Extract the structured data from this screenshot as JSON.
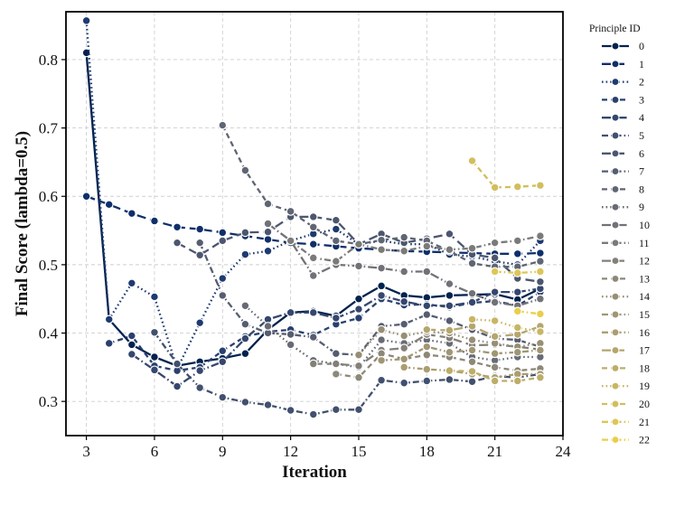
{
  "chart_data": {
    "type": "line",
    "title": "",
    "xlabel": "Iteration",
    "ylabel": "Final Score (lambda=0.5)",
    "xlim": [
      2.1,
      24
    ],
    "ylim": [
      0.25,
      0.87
    ],
    "xticks": [
      3,
      6,
      9,
      12,
      15,
      18,
      21,
      24
    ],
    "yticks": [
      0.3,
      0.4,
      0.5,
      0.6,
      0.7,
      0.8
    ],
    "xtick_labels": [
      "3",
      "6",
      "9",
      "12",
      "15",
      "18",
      "21",
      "24"
    ],
    "ytick_labels": [
      "0.3",
      "0.4",
      "0.5",
      "0.6",
      "0.7",
      "0.8"
    ],
    "grid": true,
    "legend_title": "Principle ID",
    "legend_position": "outside-right",
    "series": [
      {
        "name": "0",
        "color": "#00224e",
        "dash": "solid",
        "x": [
          3,
          4,
          5,
          6,
          7,
          8,
          9,
          10,
          11,
          12,
          13,
          14,
          15,
          16,
          17,
          18,
          19,
          20,
          21,
          22,
          23
        ],
        "y": [
          0.81,
          0.42,
          0.383,
          0.365,
          0.352,
          0.358,
          0.363,
          0.37,
          0.405,
          0.43,
          0.432,
          0.425,
          0.45,
          0.469,
          0.455,
          0.452,
          0.455,
          0.456,
          0.457,
          0.449,
          0.465
        ]
      },
      {
        "name": "1",
        "color": "#0e2f6a",
        "dash": "long",
        "x": [
          3,
          4,
          5,
          6,
          7,
          8,
          9,
          10,
          11,
          12,
          13,
          14,
          15,
          16,
          17,
          18,
          19,
          20,
          21,
          22,
          23
        ],
        "y": [
          0.6,
          0.588,
          0.575,
          0.564,
          0.555,
          0.552,
          0.547,
          0.542,
          0.537,
          0.532,
          0.53,
          0.527,
          0.524,
          0.522,
          0.52,
          0.519,
          0.518,
          0.517,
          0.516,
          0.516,
          0.517
        ]
      },
      {
        "name": "2",
        "color": "#1e3a70",
        "dash": "dot",
        "x": [
          3,
          4,
          5,
          6,
          7,
          8,
          9,
          10,
          11,
          12,
          13,
          14,
          15,
          16,
          17,
          18,
          19,
          20,
          21,
          22,
          23
        ],
        "y": [
          0.857,
          0.42,
          0.473,
          0.453,
          0.348,
          0.415,
          0.48,
          0.515,
          0.52,
          0.535,
          0.545,
          0.552,
          0.53,
          0.535,
          0.53,
          0.53,
          0.515,
          0.512,
          0.505,
          0.5,
          0.535
        ]
      },
      {
        "name": "3",
        "color": "#29406f",
        "dash": "dash",
        "x": [
          4,
          5,
          6,
          7,
          8,
          9,
          10,
          11,
          12,
          13,
          14,
          15,
          16,
          17,
          18,
          19,
          20,
          21,
          22,
          23
        ],
        "y": [
          0.385,
          0.396,
          0.352,
          0.345,
          0.35,
          0.374,
          0.395,
          0.402,
          0.405,
          0.397,
          0.413,
          0.422,
          0.45,
          0.441,
          0.442,
          0.438,
          0.444,
          0.447,
          0.44,
          0.46
        ]
      },
      {
        "name": "4",
        "color": "#35476e",
        "dash": "longdot",
        "x": [
          5,
          6,
          7,
          8,
          9,
          10,
          11,
          12,
          13,
          14,
          15,
          16,
          17,
          18,
          19,
          20,
          21,
          22,
          23
        ],
        "y": [
          0.369,
          0.346,
          0.322,
          0.345,
          0.358,
          0.392,
          0.42,
          0.43,
          0.43,
          0.422,
          0.435,
          0.455,
          0.446,
          0.44,
          0.44,
          0.445,
          0.46,
          0.46,
          0.465
        ]
      },
      {
        "name": "5",
        "color": "#41506e",
        "dash": "dashdot",
        "x": [
          6,
          7,
          8,
          9,
          10,
          11,
          12,
          13,
          14,
          15,
          16,
          17,
          18,
          19,
          20,
          21,
          22,
          23
        ],
        "y": [
          0.401,
          0.355,
          0.32,
          0.306,
          0.299,
          0.295,
          0.287,
          0.281,
          0.288,
          0.288,
          0.331,
          0.327,
          0.33,
          0.332,
          0.329,
          0.337,
          0.335,
          0.34
        ]
      },
      {
        "name": "6",
        "color": "#4c566f",
        "dash": "long",
        "x": [
          7,
          8,
          9,
          10,
          11,
          12,
          13,
          14,
          15,
          16,
          17,
          18,
          19,
          20,
          21,
          22,
          23
        ],
        "y": [
          0.532,
          0.514,
          0.535,
          0.547,
          0.548,
          0.57,
          0.57,
          0.565,
          0.53,
          0.545,
          0.532,
          0.538,
          0.545,
          0.515,
          0.51,
          0.48,
          0.475
        ]
      },
      {
        "name": "7",
        "color": "#565d71",
        "dash": "dashdot",
        "x": [
          8,
          9,
          10,
          11,
          12,
          13,
          14,
          15,
          16,
          17,
          18,
          19,
          20,
          21,
          22,
          23
        ],
        "y": [
          0.532,
          0.455,
          0.413,
          0.4,
          0.398,
          0.394,
          0.37,
          0.368,
          0.41,
          0.413,
          0.427,
          0.418,
          0.405,
          0.392,
          0.39,
          0.38
        ]
      },
      {
        "name": "8",
        "color": "#5f6573",
        "dash": "dash",
        "x": [
          9,
          10,
          11,
          12,
          13,
          14,
          15,
          16,
          17,
          18,
          19,
          20,
          21,
          22,
          23
        ],
        "y": [
          0.704,
          0.638,
          0.589,
          0.578,
          0.555,
          0.535,
          0.53,
          0.536,
          0.54,
          0.535,
          0.52,
          0.502,
          0.497,
          0.497,
          0.505
        ]
      },
      {
        "name": "9",
        "color": "#686b75",
        "dash": "dot",
        "x": [
          10,
          11,
          12,
          13,
          14,
          15,
          16,
          17,
          18,
          19,
          20,
          21,
          22,
          23
        ],
        "y": [
          0.44,
          0.41,
          0.383,
          0.36,
          0.355,
          0.35,
          0.39,
          0.385,
          0.39,
          0.385,
          0.365,
          0.36,
          0.365,
          0.365
        ]
      },
      {
        "name": "10",
        "color": "#717277",
        "dash": "longdot",
        "x": [
          11,
          12,
          13,
          14,
          15,
          16,
          17,
          18,
          19,
          20,
          21,
          22,
          23
        ],
        "y": [
          0.56,
          0.535,
          0.484,
          0.5,
          0.498,
          0.495,
          0.49,
          0.49,
          0.472,
          0.458,
          0.445,
          0.44,
          0.45
        ]
      },
      {
        "name": "11",
        "color": "#7a7a79",
        "dash": "dashdot",
        "x": [
          12,
          13,
          14,
          15,
          16,
          17,
          18,
          19,
          20,
          21,
          22,
          23
        ],
        "y": [
          0.535,
          0.51,
          0.505,
          0.53,
          0.522,
          0.52,
          0.527,
          0.522,
          0.524,
          0.532,
          0.535,
          0.542
        ]
      },
      {
        "name": "12",
        "color": "#838078",
        "dash": "long",
        "x": [
          13,
          14,
          15,
          16,
          17,
          18,
          19,
          20,
          21,
          22,
          23
        ],
        "y": [
          0.355,
          0.355,
          0.352,
          0.375,
          0.378,
          0.398,
          0.393,
          0.382,
          0.383,
          0.38,
          0.376
        ]
      },
      {
        "name": "13",
        "color": "#8d8877",
        "dash": "dash",
        "x": [
          14,
          15,
          16,
          17,
          18,
          19,
          20,
          21,
          22,
          23
        ],
        "y": [
          0.34,
          0.335,
          0.37,
          0.362,
          0.368,
          0.365,
          0.358,
          0.35,
          0.345,
          0.348
        ]
      },
      {
        "name": "14",
        "color": "#968f75",
        "dash": "dot",
        "x": [
          15,
          16,
          17,
          18,
          19,
          20,
          21,
          22,
          23
        ],
        "y": [
          0.368,
          0.405,
          0.396,
          0.402,
          0.4,
          0.39,
          0.385,
          0.38,
          0.385
        ]
      },
      {
        "name": "15",
        "color": "#a09674",
        "dash": "dashdot",
        "x": [
          16,
          17,
          18,
          19,
          20,
          21,
          22,
          23
        ],
        "y": [
          0.36,
          0.362,
          0.38,
          0.372,
          0.375,
          0.37,
          0.372,
          0.375
        ]
      },
      {
        "name": "16",
        "color": "#aa9e71",
        "dash": "dashdot",
        "x": [
          17,
          18,
          19,
          20,
          21,
          22,
          23
        ],
        "y": [
          0.35,
          0.347,
          0.345,
          0.34,
          0.335,
          0.34,
          0.34
        ]
      },
      {
        "name": "17",
        "color": "#b4a66d",
        "dash": "long",
        "x": [
          18,
          19,
          20,
          21,
          22,
          23
        ],
        "y": [
          0.405,
          0.404,
          0.41,
          0.395,
          0.398,
          0.41
        ]
      },
      {
        "name": "18",
        "color": "#bdad69",
        "dash": "dash",
        "x": [
          19,
          20,
          21,
          22,
          23
        ],
        "y": [
          0.345,
          0.344,
          0.33,
          0.33,
          0.335
        ]
      },
      {
        "name": "19",
        "color": "#c8b664",
        "dash": "dot",
        "x": [
          20,
          21,
          22,
          23
        ],
        "y": [
          0.42,
          0.418,
          0.408,
          0.402
        ]
      },
      {
        "name": "20",
        "color": "#d2be5e",
        "dash": "dash",
        "x": [
          20,
          21,
          22,
          23
        ],
        "y": [
          0.652,
          0.613,
          0.614,
          0.616
        ]
      },
      {
        "name": "21",
        "color": "#ddc656",
        "dash": "dashdot",
        "x": [
          21,
          22,
          23
        ],
        "y": [
          0.49,
          0.488,
          0.49
        ]
      },
      {
        "name": "22",
        "color": "#e8cf4b",
        "dash": "dashdot",
        "x": [
          22,
          23
        ],
        "y": [
          0.432,
          0.428
        ]
      }
    ]
  }
}
